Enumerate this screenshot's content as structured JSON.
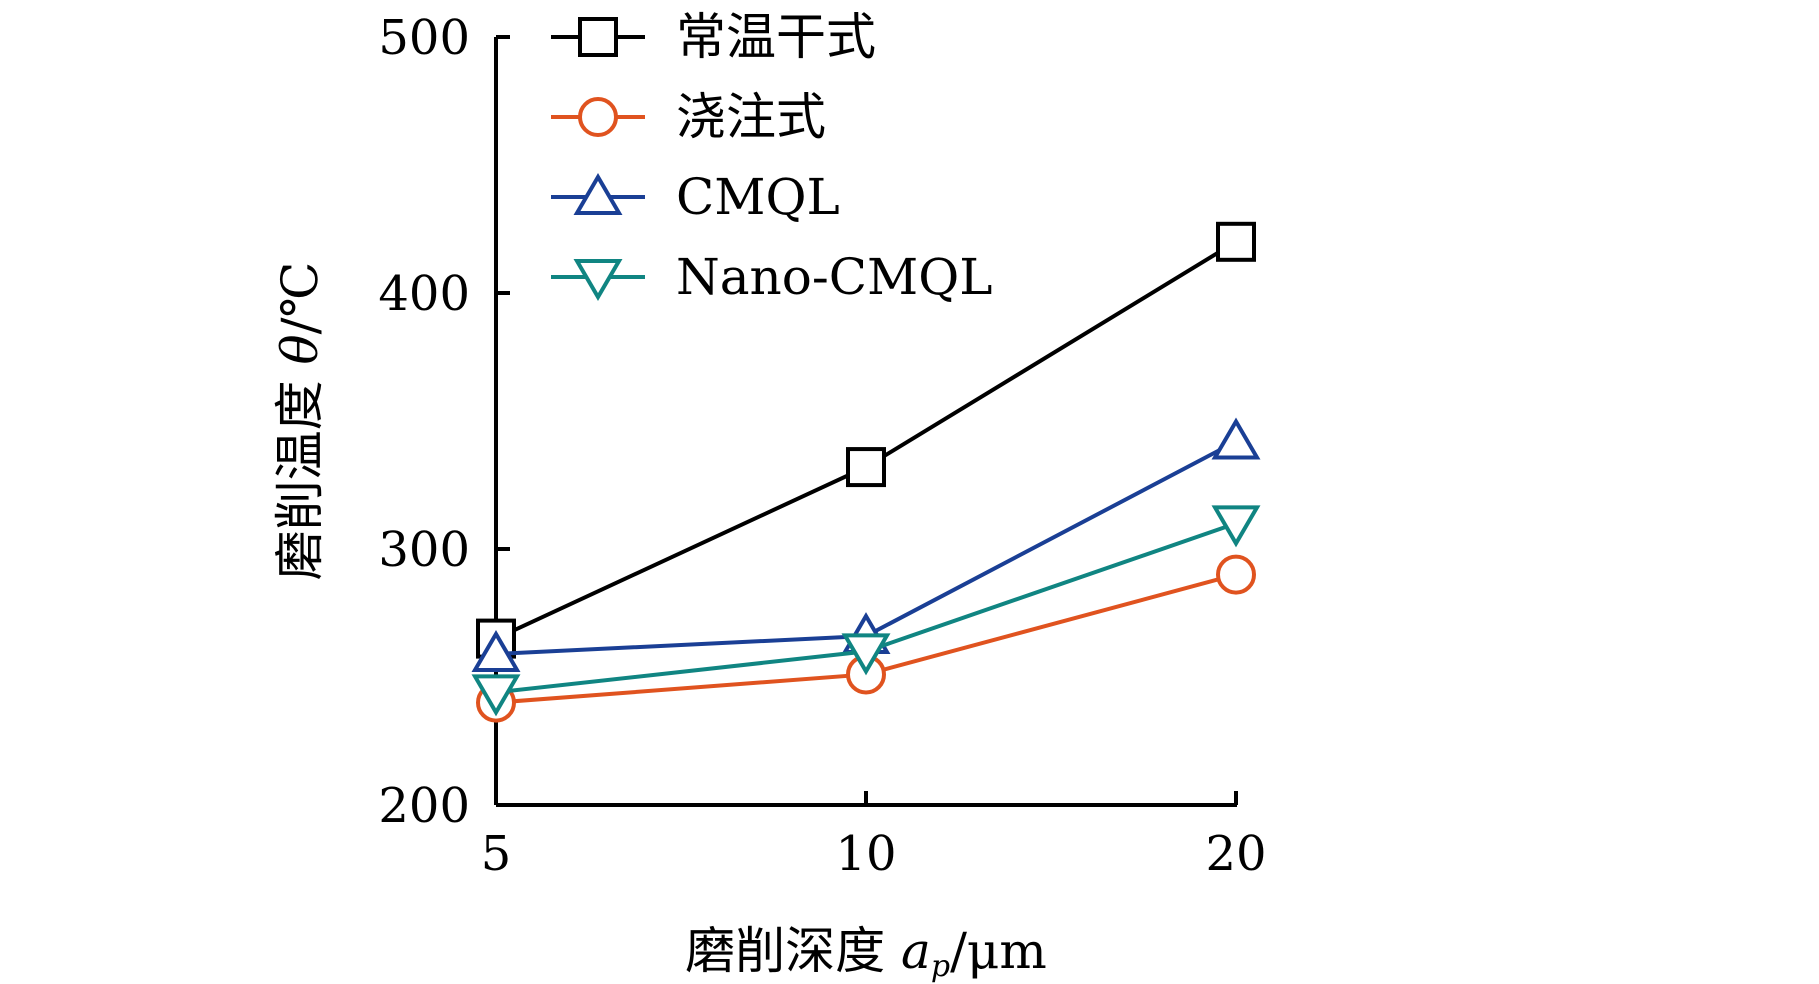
{
  "chart_data": {
    "type": "line",
    "x_categories": [
      "5",
      "10",
      "20"
    ],
    "xlabel": {
      "prefix": "磨削深度 ",
      "var": "a",
      "sub": "p",
      "unit": "/μm"
    },
    "ylabel": {
      "prefix": "磨削温度 ",
      "var": "θ",
      "unit": "/℃"
    },
    "ylim": [
      200,
      500
    ],
    "yticks": [
      "200",
      "300",
      "400",
      "500"
    ],
    "grid": false,
    "legend_position": "top-left",
    "series": [
      {
        "name": "常温干式",
        "marker": "square",
        "color": "#000000",
        "values": [
          265,
          332,
          420
        ]
      },
      {
        "name": "浇注式",
        "marker": "circle",
        "color": "#e0531f",
        "values": [
          240,
          251,
          290
        ]
      },
      {
        "name": "CMQL",
        "marker": "triangle-up",
        "color": "#1a3f95",
        "values": [
          259,
          266,
          342
        ]
      },
      {
        "name": "Nano-CMQL",
        "marker": "triangle-down",
        "color": "#108582",
        "values": [
          244,
          260,
          310
        ]
      }
    ]
  }
}
